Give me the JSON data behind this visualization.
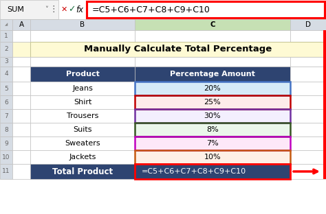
{
  "title": "Manually Calculate Total Percentage",
  "title_bg": "#FEFAD4",
  "formula_bar_text": "=C5+C6+C7+C8+C9+C10",
  "header_bg": "#2E4471",
  "header_fg": "#FFFFFF",
  "col_headers": [
    "Product",
    "Percentage Amount"
  ],
  "rows": [
    {
      "product": "Jeans",
      "pct": "20%",
      "row_bg": "#D6EAF8"
    },
    {
      "product": "Shirt",
      "pct": "25%",
      "row_bg": "#FDECEA"
    },
    {
      "product": "Trousers",
      "pct": "30%",
      "row_bg": "#F3EFFE"
    },
    {
      "product": "Suits",
      "pct": "8%",
      "row_bg": "#EAF7EA"
    },
    {
      "product": "Sweaters",
      "pct": "7%",
      "row_bg": "#FDE8F8"
    },
    {
      "product": "Jackets",
      "pct": "10%",
      "row_bg": "#FEF0E6"
    }
  ],
  "footer_text_left": "Total Product",
  "footer_text_right": "=C5+C6+C7+C8+C9+C10",
  "footer_bg": "#2E4471",
  "footer_fg": "#FFFFFF",
  "cell_border_colors": [
    "#4472C4",
    "#C00000",
    "#7030A0",
    "#375623",
    "#C000C0",
    "#C55A11"
  ],
  "excel_header_bg": "#D6DCE4",
  "active_col_bg": "#C6E0B4",
  "outer_red_border": "#FF0000",
  "grid_color": "#C0C0C0",
  "figw": 4.74,
  "figh": 3.12,
  "dpi": 100
}
